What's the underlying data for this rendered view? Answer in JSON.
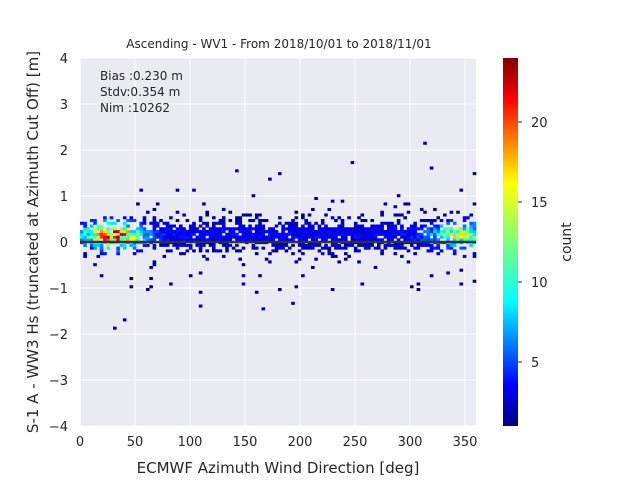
{
  "chart_data": {
    "type": "heatmap",
    "title": "Ascending - WV1 - From 2018/10/01 to 2018/11/01",
    "xlabel": "ECMWF Azimuth Wind Direction [deg]",
    "ylabel": "S-1 A - WW3 Hs (truncated at Azimuth Cut Off) [m]",
    "xlim": [
      0,
      360
    ],
    "ylim": [
      -4,
      4
    ],
    "xticks": [
      0,
      50,
      100,
      150,
      200,
      250,
      300,
      350
    ],
    "yticks": [
      -4,
      -3,
      -2,
      -1,
      0,
      1,
      2,
      3,
      4
    ],
    "grid": true,
    "stats": [
      "Bias :0.230 m",
      "Stdv:0.354 m",
      "Nim :10262"
    ],
    "colorbar": {
      "label": "count",
      "range": [
        1,
        24
      ],
      "ticks": [
        5,
        10,
        15,
        20
      ],
      "colormap": "jet"
    },
    "zero_line": 0,
    "density_profile": {
      "x_hotspots": [
        {
          "x": 30,
          "count": 22
        },
        {
          "x": 345,
          "count": 14
        }
      ],
      "core_y_range": [
        -0.3,
        0.8
      ],
      "outliers_y_range": [
        -1.9,
        2.3
      ]
    }
  },
  "colors": {
    "background": "#EAEAF2",
    "grid": "#FFFFFF",
    "zero_line": "#333333"
  }
}
